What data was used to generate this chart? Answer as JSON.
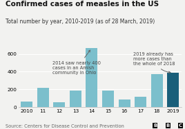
{
  "title": "Confirmed cases of measles in the US",
  "subtitle": "Total number by year, 2010-2019 (as of 28 March, 2019)",
  "source": "Source: Centers for Disease Control and Prevention",
  "categories": [
    "2010",
    "11",
    "12",
    "13",
    "14",
    "15",
    "16",
    "17",
    "18",
    "2019"
  ],
  "values": [
    63,
    220,
    55,
    187,
    667,
    188,
    86,
    120,
    372,
    387
  ],
  "bar_colors": [
    "#7bbfcc",
    "#7bbfcc",
    "#7bbfcc",
    "#7bbfcc",
    "#7bbfcc",
    "#7bbfcc",
    "#7bbfcc",
    "#7bbfcc",
    "#7bbfcc",
    "#1a5f7a"
  ],
  "ylim": [
    0,
    700
  ],
  "yticks": [
    0,
    200,
    400,
    600
  ],
  "annotation1_text": "2014 saw nearly 400\ncases in an Amish\ncommunity in Ohio",
  "annotation2_text": "2019 already has\nmore cases than\nthe whole of 2018",
  "background_color": "#f2f2f0",
  "title_fontsize": 7.5,
  "subtitle_fontsize": 5.5,
  "tick_fontsize": 5.2,
  "source_fontsize": 4.8,
  "annot_fontsize": 4.8
}
